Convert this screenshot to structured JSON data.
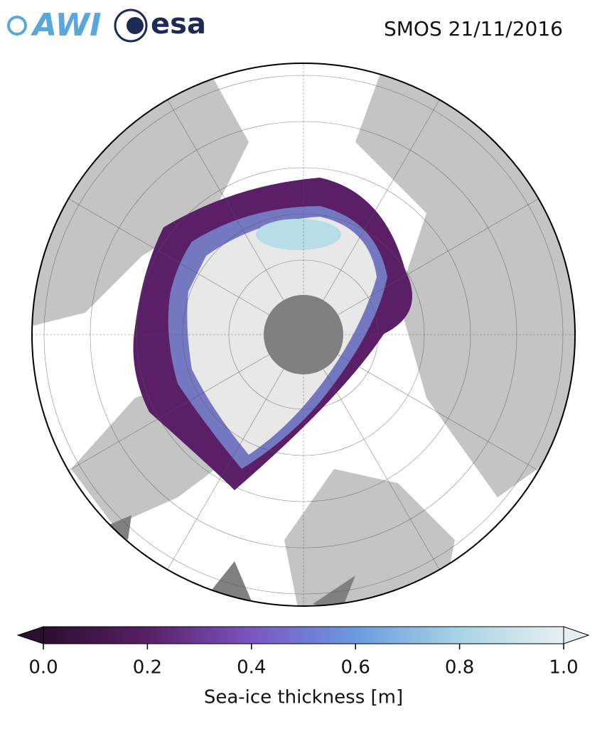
{
  "header": {
    "logos": [
      "AWI",
      "esa"
    ],
    "title": "SMOS 21/11/2016"
  },
  "colorbar": {
    "label": "Sea-ice thickness [m]",
    "range": [
      0,
      1
    ],
    "ticks": [
      {
        "value": 0,
        "label": "0.0"
      },
      0.2,
      0.4,
      0.6,
      0.8,
      {
        "value": 1,
        "label": "1.0"
      }
    ],
    "colors": [
      "#2a0f2e",
      "#5a1f66",
      "#7a55c4",
      "#6a9be0",
      "#a8d4e4",
      "#e6efef"
    ]
  }
}
